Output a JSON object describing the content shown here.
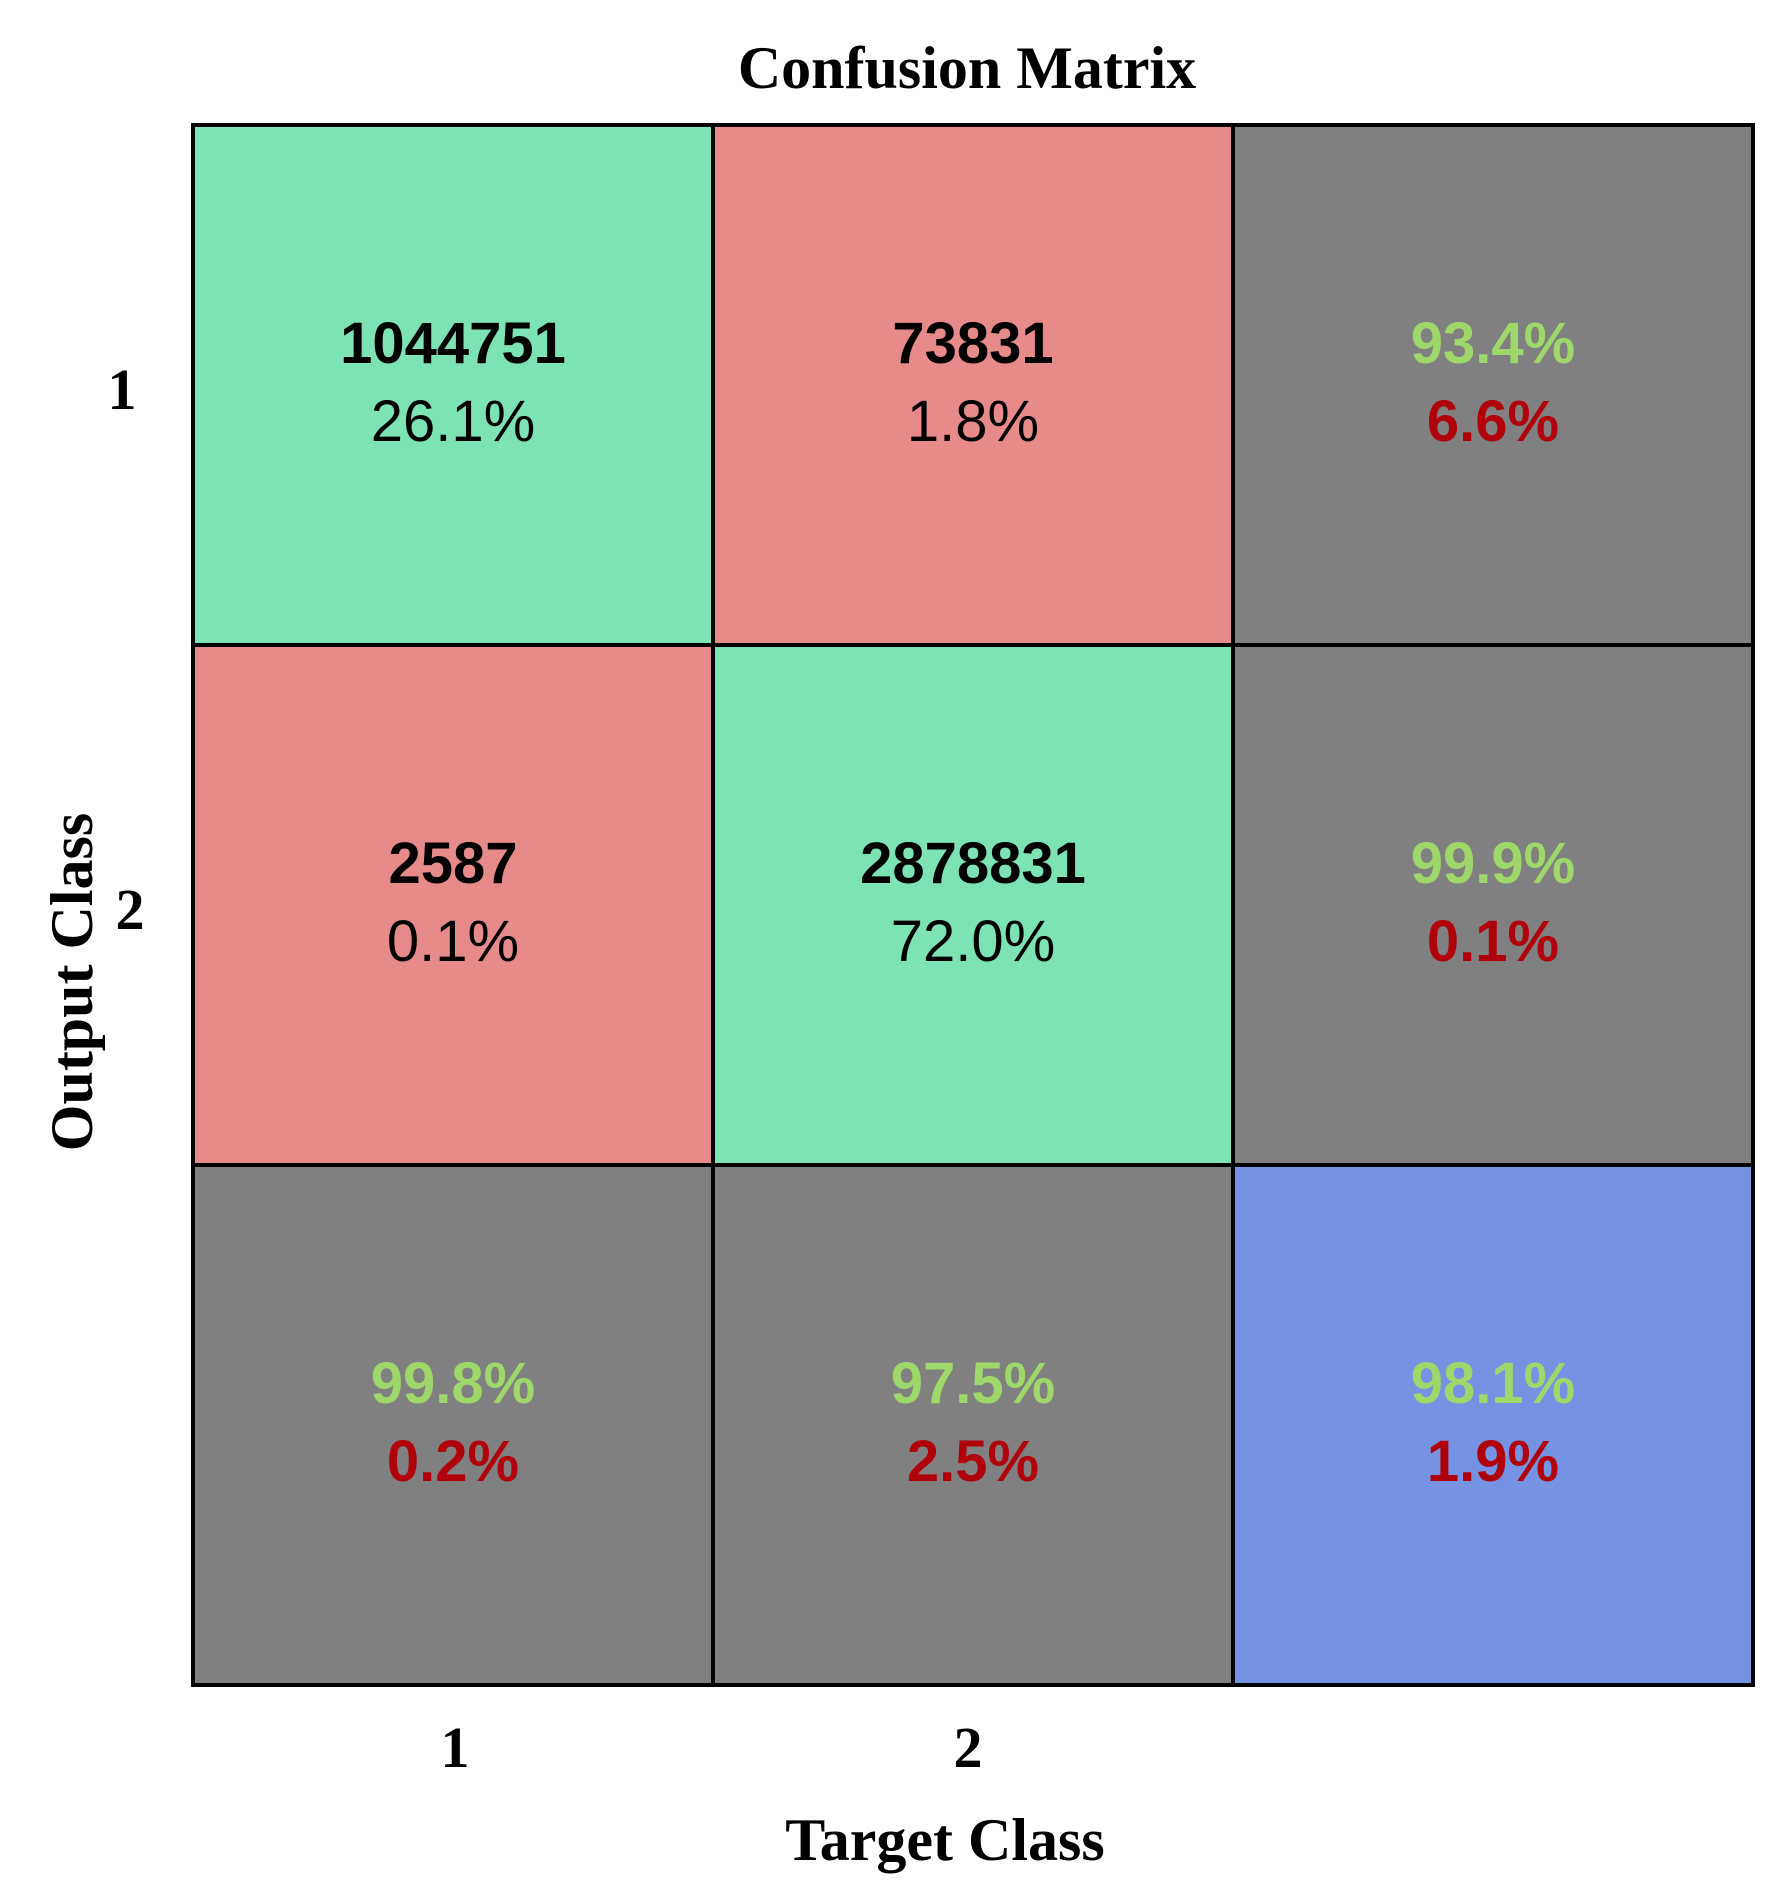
{
  "colors": {
    "correct": "#7de3b5",
    "incorrect": "#e68b8a",
    "summary": "#808080",
    "overall": "#7592e3",
    "good_text": "#9ed76a",
    "bad_text": "#b0000b",
    "count_text": "#000000"
  },
  "chart_data": {
    "type": "heatmap",
    "title": "Confusion Matrix",
    "xlabel": "Target Class",
    "ylabel": "Output Class",
    "x_tick_labels": [
      "1",
      "2"
    ],
    "y_tick_labels": [
      "1",
      "2"
    ],
    "matrix": [
      [
        {
          "count": "1044751",
          "percent": "26.1%"
        },
        {
          "count": "73831",
          "percent": "1.8%"
        }
      ],
      [
        {
          "count": "2587",
          "percent": "0.1%"
        },
        {
          "count": "2878831",
          "percent": "72.0%"
        }
      ]
    ],
    "row_summary": [
      {
        "correct": "93.4%",
        "error": "6.6%"
      },
      {
        "correct": "99.9%",
        "error": "0.1%"
      }
    ],
    "column_summary": [
      {
        "correct": "99.8%",
        "error": "0.2%"
      },
      {
        "correct": "97.5%",
        "error": "2.5%"
      }
    ],
    "overall": {
      "correct": "98.1%",
      "error": "1.9%"
    }
  }
}
